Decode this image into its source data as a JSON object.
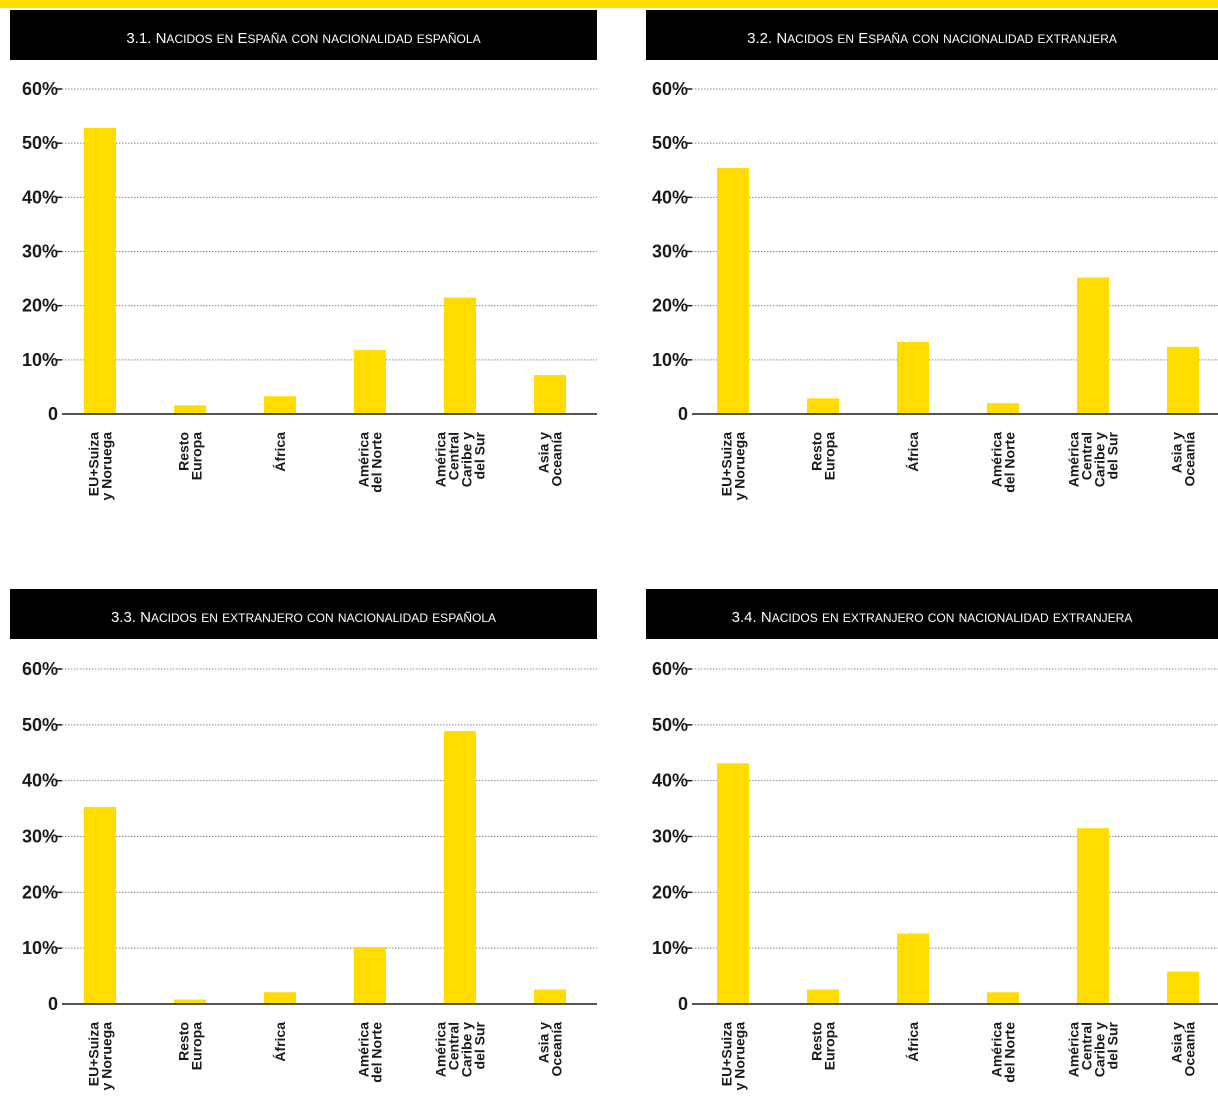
{
  "colors": {
    "accent": "#FFDD00",
    "title_bg": "#000000",
    "text": "#1a1a1a",
    "grid": "#888888"
  },
  "charts": [
    {
      "id": "3.1",
      "title_number": "3.1.",
      "title_text": "Nacidos en España con nacionalidad española"
    },
    {
      "id": "3.2",
      "title_number": "3.2.",
      "title_text": "Nacidos en España con nacionalidad extranjera"
    },
    {
      "id": "3.3",
      "title_number": "3.3.",
      "title_text": "Nacidos en extranjero con nacionalidad española"
    },
    {
      "id": "3.4",
      "title_number": "3.4.",
      "title_text": "Nacidos en extranjero con nacionalidad extranjera"
    }
  ],
  "chart_data": [
    {
      "type": "bar",
      "title": "3.1. Nacidos en España con nacionalidad española",
      "categories": [
        [
          "EU+Suiza",
          "y Noruega"
        ],
        [
          "Resto",
          "Europa"
        ],
        [
          "África"
        ],
        [
          "América",
          "del Norte"
        ],
        [
          "América",
          "Central",
          "Caribe y",
          "del Sur"
        ],
        [
          "Asia y",
          "Oceanía"
        ]
      ],
      "values": [
        52.8,
        1.6,
        3.3,
        11.8,
        21.5,
        7.2
      ],
      "yticks": [
        "0",
        "10%",
        "20%",
        "30%",
        "40%",
        "50%",
        "60%"
      ],
      "ylim": [
        0,
        60
      ],
      "grid": true
    },
    {
      "type": "bar",
      "title": "3.2. Nacidos en España con nacionalidad extranjera",
      "categories": [
        [
          "EU+Suiza",
          "y Noruega"
        ],
        [
          "Resto",
          "Europa"
        ],
        [
          "África"
        ],
        [
          "América",
          "del Norte"
        ],
        [
          "América",
          "Central",
          "Caribe y",
          "del Sur"
        ],
        [
          "Asia y",
          "Oceanía"
        ]
      ],
      "values": [
        45.4,
        2.9,
        13.3,
        2.0,
        25.2,
        12.4
      ],
      "yticks": [
        "0",
        "10%",
        "20%",
        "30%",
        "40%",
        "50%",
        "60%"
      ],
      "ylim": [
        0,
        60
      ],
      "grid": true
    },
    {
      "type": "bar",
      "title": "3.3. Nacidos en extranjero con nacionalidad española",
      "categories": [
        [
          "EU+Suiza",
          "y Noruega"
        ],
        [
          "Resto",
          "Europa"
        ],
        [
          "África"
        ],
        [
          "América",
          "del Norte"
        ],
        [
          "América",
          "Central",
          "Caribe y",
          "del Sur"
        ],
        [
          "Asia y",
          "Oceanía"
        ]
      ],
      "values": [
        35.3,
        0.8,
        2.1,
        10.2,
        48.9,
        2.6
      ],
      "yticks": [
        "0",
        "10%",
        "20%",
        "30%",
        "40%",
        "50%",
        "60%"
      ],
      "ylim": [
        0,
        60
      ],
      "grid": true
    },
    {
      "type": "bar",
      "title": "3.4. Nacidos en extranjero con nacionalidad extranjera",
      "categories": [
        [
          "EU+Suiza",
          "y Noruega"
        ],
        [
          "Resto",
          "Europa"
        ],
        [
          "África"
        ],
        [
          "América",
          "del Norte"
        ],
        [
          "América",
          "Central",
          "Caribe y",
          "del Sur"
        ],
        [
          "Asia y",
          "Oceanía"
        ]
      ],
      "values": [
        43.1,
        2.6,
        12.6,
        2.1,
        31.5,
        5.8
      ],
      "yticks": [
        "0",
        "10%",
        "20%",
        "30%",
        "40%",
        "50%",
        "60%"
      ],
      "ylim": [
        0,
        60
      ],
      "grid": true
    }
  ]
}
